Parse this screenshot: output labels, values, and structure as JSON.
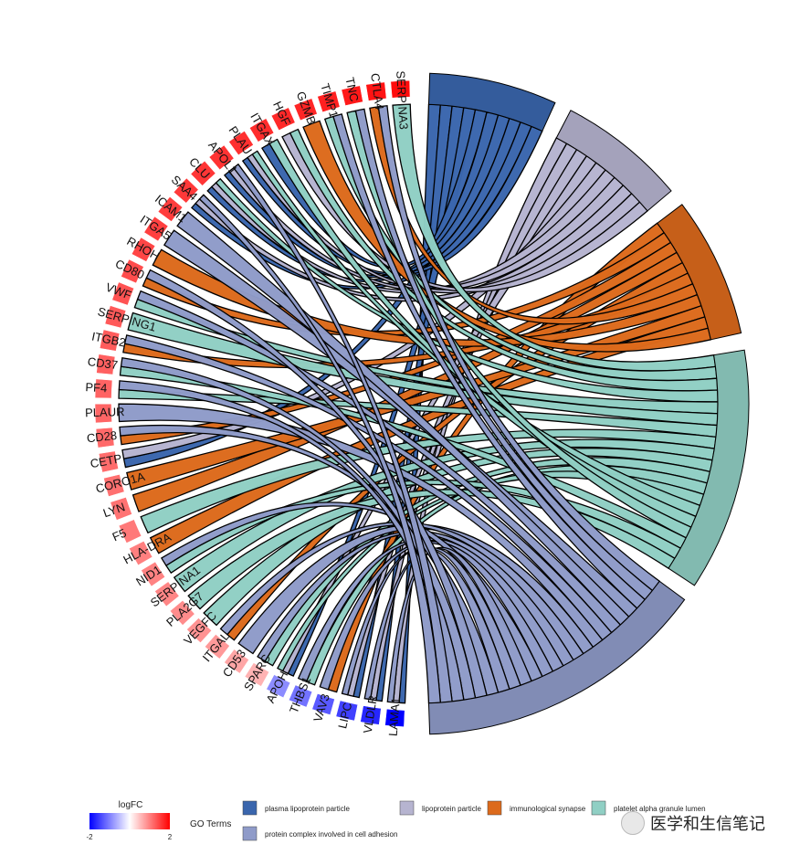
{
  "chart_data": {
    "type": "chord",
    "genes": [
      "SERPINA3",
      "CTLA4",
      "TNC",
      "TIMP1",
      "GZMB",
      "HGF",
      "ITGAX",
      "PLAU",
      "APOL1",
      "CLU",
      "SAA4",
      "ICAM1",
      "ITGA5",
      "RHOH",
      "CD80",
      "VWF",
      "SERPING1",
      "ITGB2",
      "CD37",
      "PF4",
      "PLAUR",
      "CD28",
      "CETP",
      "CORO1A",
      "LYN",
      "F5",
      "HLA-DRA",
      "NID1",
      "SERPINA1",
      "PLA2G7",
      "VEGFC",
      "ITGAL",
      "CD53",
      "SPARC",
      "APOH",
      "THBS1",
      "VAV3",
      "LIPC",
      "VLDLR",
      "LAMA1"
    ],
    "logFC": [
      1.9,
      1.85,
      1.8,
      1.75,
      1.7,
      1.68,
      1.65,
      1.62,
      1.6,
      1.58,
      1.55,
      1.52,
      1.5,
      1.45,
      1.4,
      1.35,
      1.3,
      1.28,
      1.25,
      1.22,
      1.2,
      1.18,
      1.15,
      1.12,
      1.1,
      1.05,
      1.0,
      0.98,
      0.95,
      0.9,
      0.85,
      0.8,
      0.7,
      0.6,
      -0.9,
      -1.1,
      -1.3,
      -1.5,
      -1.7,
      -2.0
    ],
    "logFC_range": [
      -2,
      2
    ],
    "terms": [
      {
        "name": "plasma lipoprotein particle",
        "color": "#3a66ad",
        "genes": [
          "LAMA1",
          "VLDLR",
          "LIPC",
          "APOH",
          "CETP",
          "ITGAX",
          "CLU",
          "APOL1",
          "SAA4",
          "PLAU"
        ]
      },
      {
        "name": "lipoprotein particle",
        "color": "#b6b4d0",
        "genes": [
          "LAMA1",
          "VLDLR",
          "LIPC",
          "APOH",
          "CETP",
          "CLU",
          "APOL1",
          "SAA4",
          "PLAU",
          "HGF"
        ]
      },
      {
        "name": "immunological synapse",
        "color": "#dc6a1c",
        "genes": [
          "VAV3",
          "CD80",
          "CD28",
          "LYN",
          "ITGAL",
          "ITGB2",
          "CTLA4",
          "RHOH",
          "CORO1A",
          "HLA-DRA",
          "GZMB"
        ]
      },
      {
        "name": "platelet alpha granule lumen",
        "color": "#90cfc4",
        "genes": [
          "SERPINA3",
          "TIMP1",
          "HGF",
          "CLU",
          "VWF",
          "SERPING1",
          "PF4",
          "F5",
          "SERPINA1",
          "VEGFC",
          "SPARC",
          "THBS1",
          "APOH",
          "PLAU",
          "ITGAX",
          "TNC",
          "CD37",
          "NID1",
          "PLA2G7"
        ]
      },
      {
        "name": "protein complex involved in cell adhesion",
        "color": "#8f9bc9",
        "genes": [
          "CTLA4",
          "TNC",
          "TIMP1",
          "ITGA5",
          "ICAM1",
          "VWF",
          "ITGB2",
          "PLAUR",
          "CD53",
          "ITGAL",
          "SPARC",
          "THBS1",
          "VAV3",
          "NID1",
          "LAMA1",
          "VLDLR",
          "LIPC",
          "CD28",
          "CD80",
          "CD37",
          "PF4",
          "APOL1",
          "SAA4"
        ]
      }
    ],
    "legend": {
      "logfc_title": "logFC",
      "logfc_min_label": "-2",
      "logfc_max_label": "2",
      "go_title": "GO Terms"
    }
  },
  "watermark": {
    "text": "医学和生信笔记"
  }
}
